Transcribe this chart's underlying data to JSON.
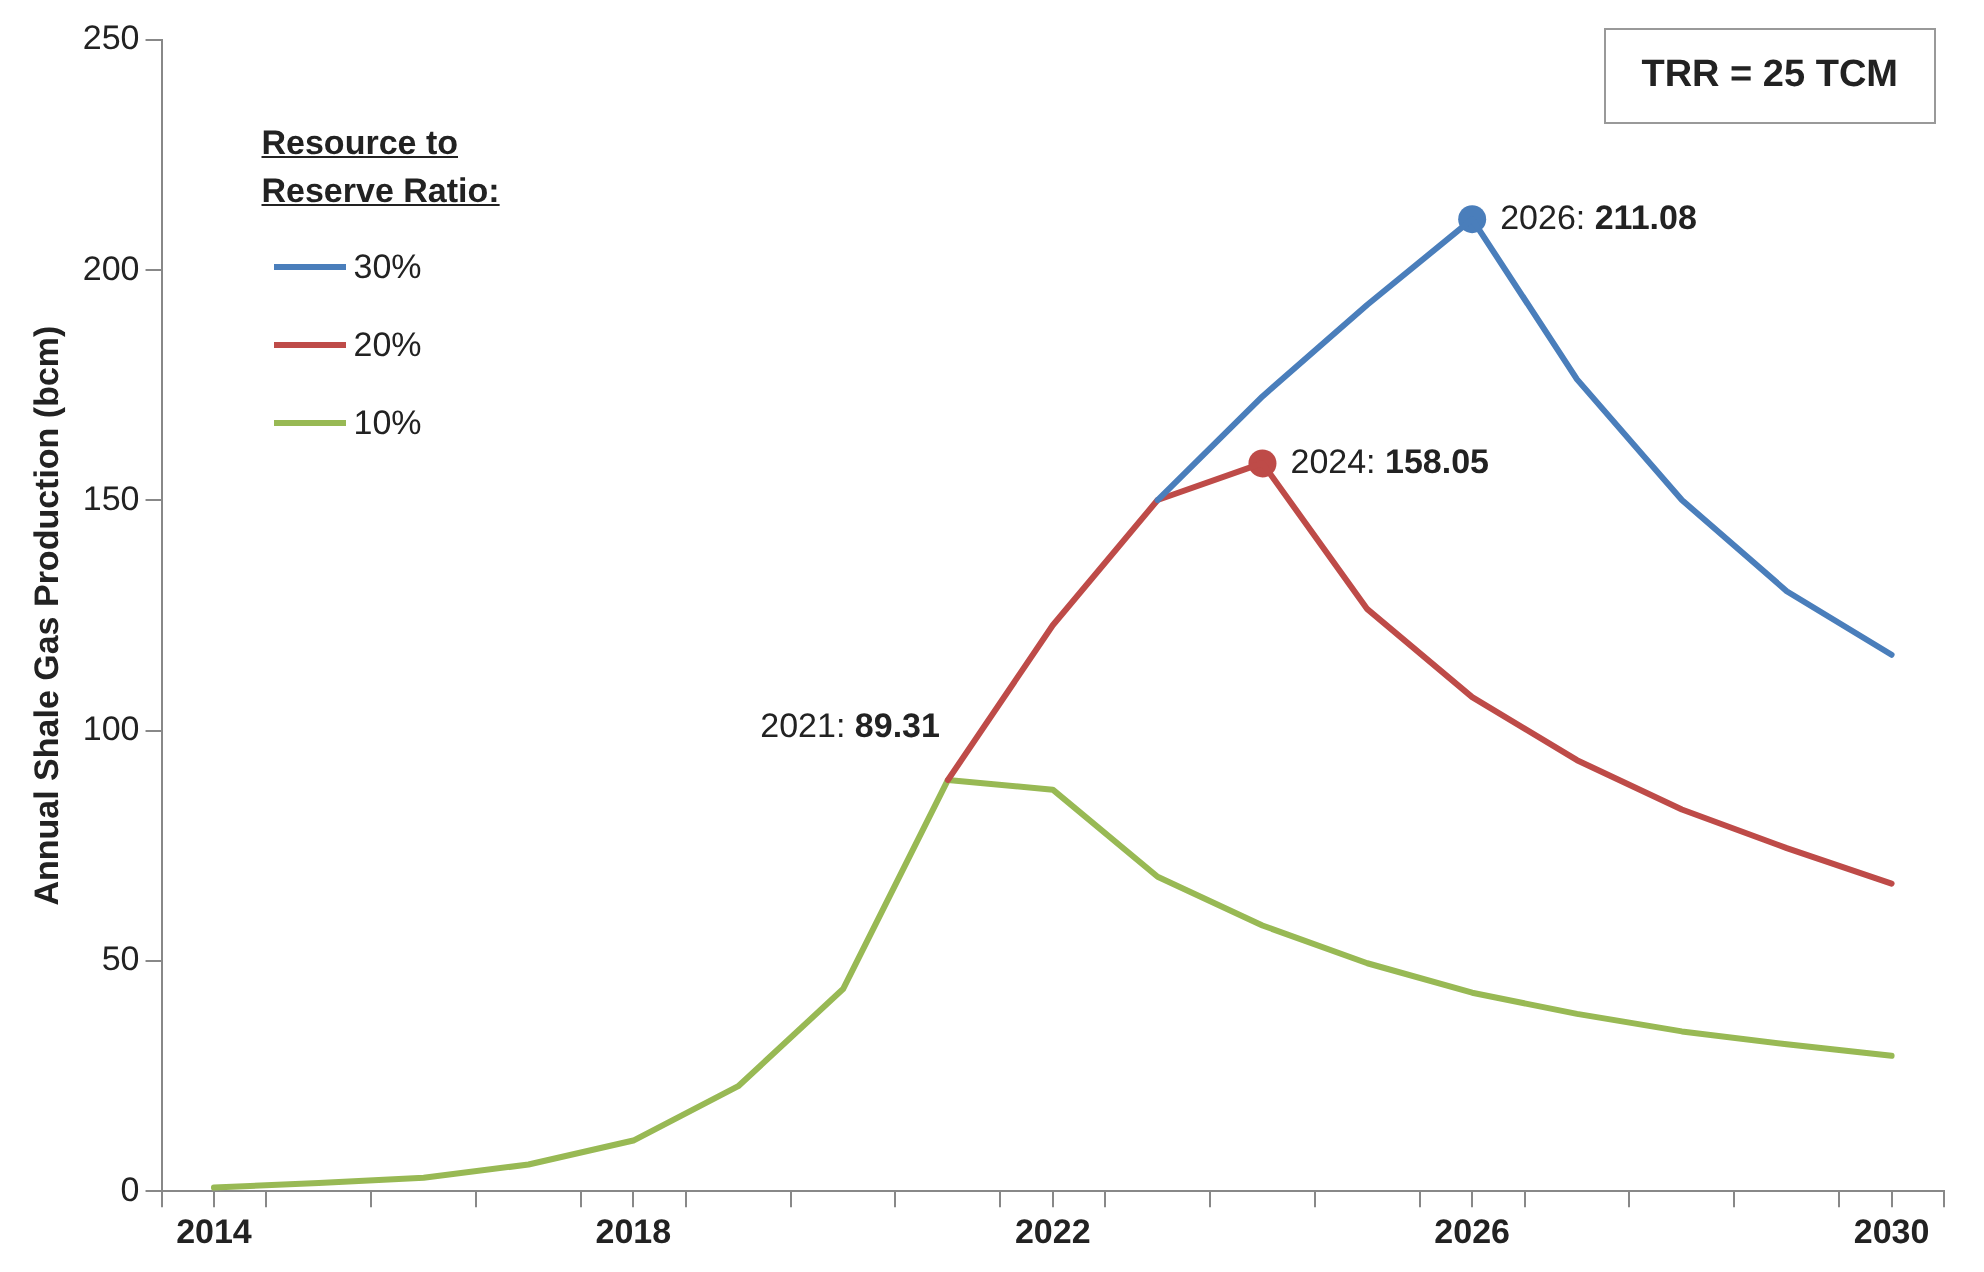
{
  "chart_data": {
    "type": "line",
    "ylabel": "Annual Shale Gas Production (bcm)",
    "legend_title": "Resource to Reserve Ratio:",
    "legend": "top left",
    "grid": false,
    "line_style": "solid",
    "x": [
      2014,
      2015,
      2016,
      2017,
      2018,
      2019,
      2020,
      2021,
      2022,
      2023,
      2024,
      2025,
      2026,
      2027,
      2028,
      2029,
      2030
    ],
    "xlim": [
      2013.5,
      2030.5
    ],
    "xticks": [
      {
        "value": 2013.5,
        "label": null
      },
      2014,
      {
        "value": 2014.5,
        "label": null
      },
      {
        "value": 2015.5,
        "label": null
      },
      {
        "value": 2016.5,
        "label": null
      },
      {
        "value": 2017.5,
        "label": null
      },
      2018,
      {
        "value": 2018.5,
        "label": null
      },
      {
        "value": 2019.5,
        "label": null
      },
      {
        "value": 2020.5,
        "label": null
      },
      {
        "value": 2021.5,
        "label": null
      },
      2022,
      {
        "value": 2022.5,
        "label": null
      },
      {
        "value": 2023.5,
        "label": null
      },
      {
        "value": 2024.5,
        "label": null
      },
      {
        "value": 2025.5,
        "label": null
      },
      2026,
      {
        "value": 2026.5,
        "label": null
      },
      {
        "value": 2027.5,
        "label": null
      },
      {
        "value": 2028.5,
        "label": null
      },
      {
        "value": 2029.5,
        "label": null
      },
      2030,
      {
        "value": 2030.5,
        "label": null
      }
    ],
    "ylim": [
      0,
      250
    ],
    "yticks": [
      0,
      50,
      100,
      150,
      200,
      250
    ],
    "annotations": [
      "TRR = 25 TCM"
    ],
    "series": [
      {
        "name": "30%",
        "color": "#4a7ebb",
        "values": [
          null,
          null,
          null,
          null,
          null,
          null,
          null,
          null,
          null,
          150.1,
          172.6,
          192.5,
          211.1,
          176.3,
          150.1,
          130.3,
          116.5
        ]
      },
      {
        "name": "20%",
        "color": "#be4b48",
        "values": [
          null,
          null,
          null,
          null,
          null,
          null,
          null,
          89.3,
          122.9,
          150.1,
          158.1,
          126.4,
          107.3,
          93.6,
          82.9,
          74.5,
          66.8
        ]
      },
      {
        "name": "10%",
        "color": "#98b954",
        "values": [
          0.8,
          1.8,
          2.9,
          5.8,
          11,
          22.8,
          43.9,
          89.31,
          87.2,
          68.3,
          57.7,
          49.5,
          43.1,
          38.5,
          34.7,
          31.9,
          29.4
        ],
        "value_labels": [
          null,
          null,
          null,
          null,
          null,
          null,
          null,
          "2021: 89.31",
          null,
          null,
          null,
          null,
          null,
          null,
          null,
          null,
          null
        ]
      },
      {
        "type": "scatter",
        "marker": "circle",
        "x": [
          2024,
          2026
        ],
        "values": [
          158.05,
          211.08
        ],
        "colors": [
          "#be4b48",
          "#4a7ebb"
        ],
        "value_labels": [
          "2024: 158.05",
          "2026: 211.08"
        ]
      }
    ]
  }
}
